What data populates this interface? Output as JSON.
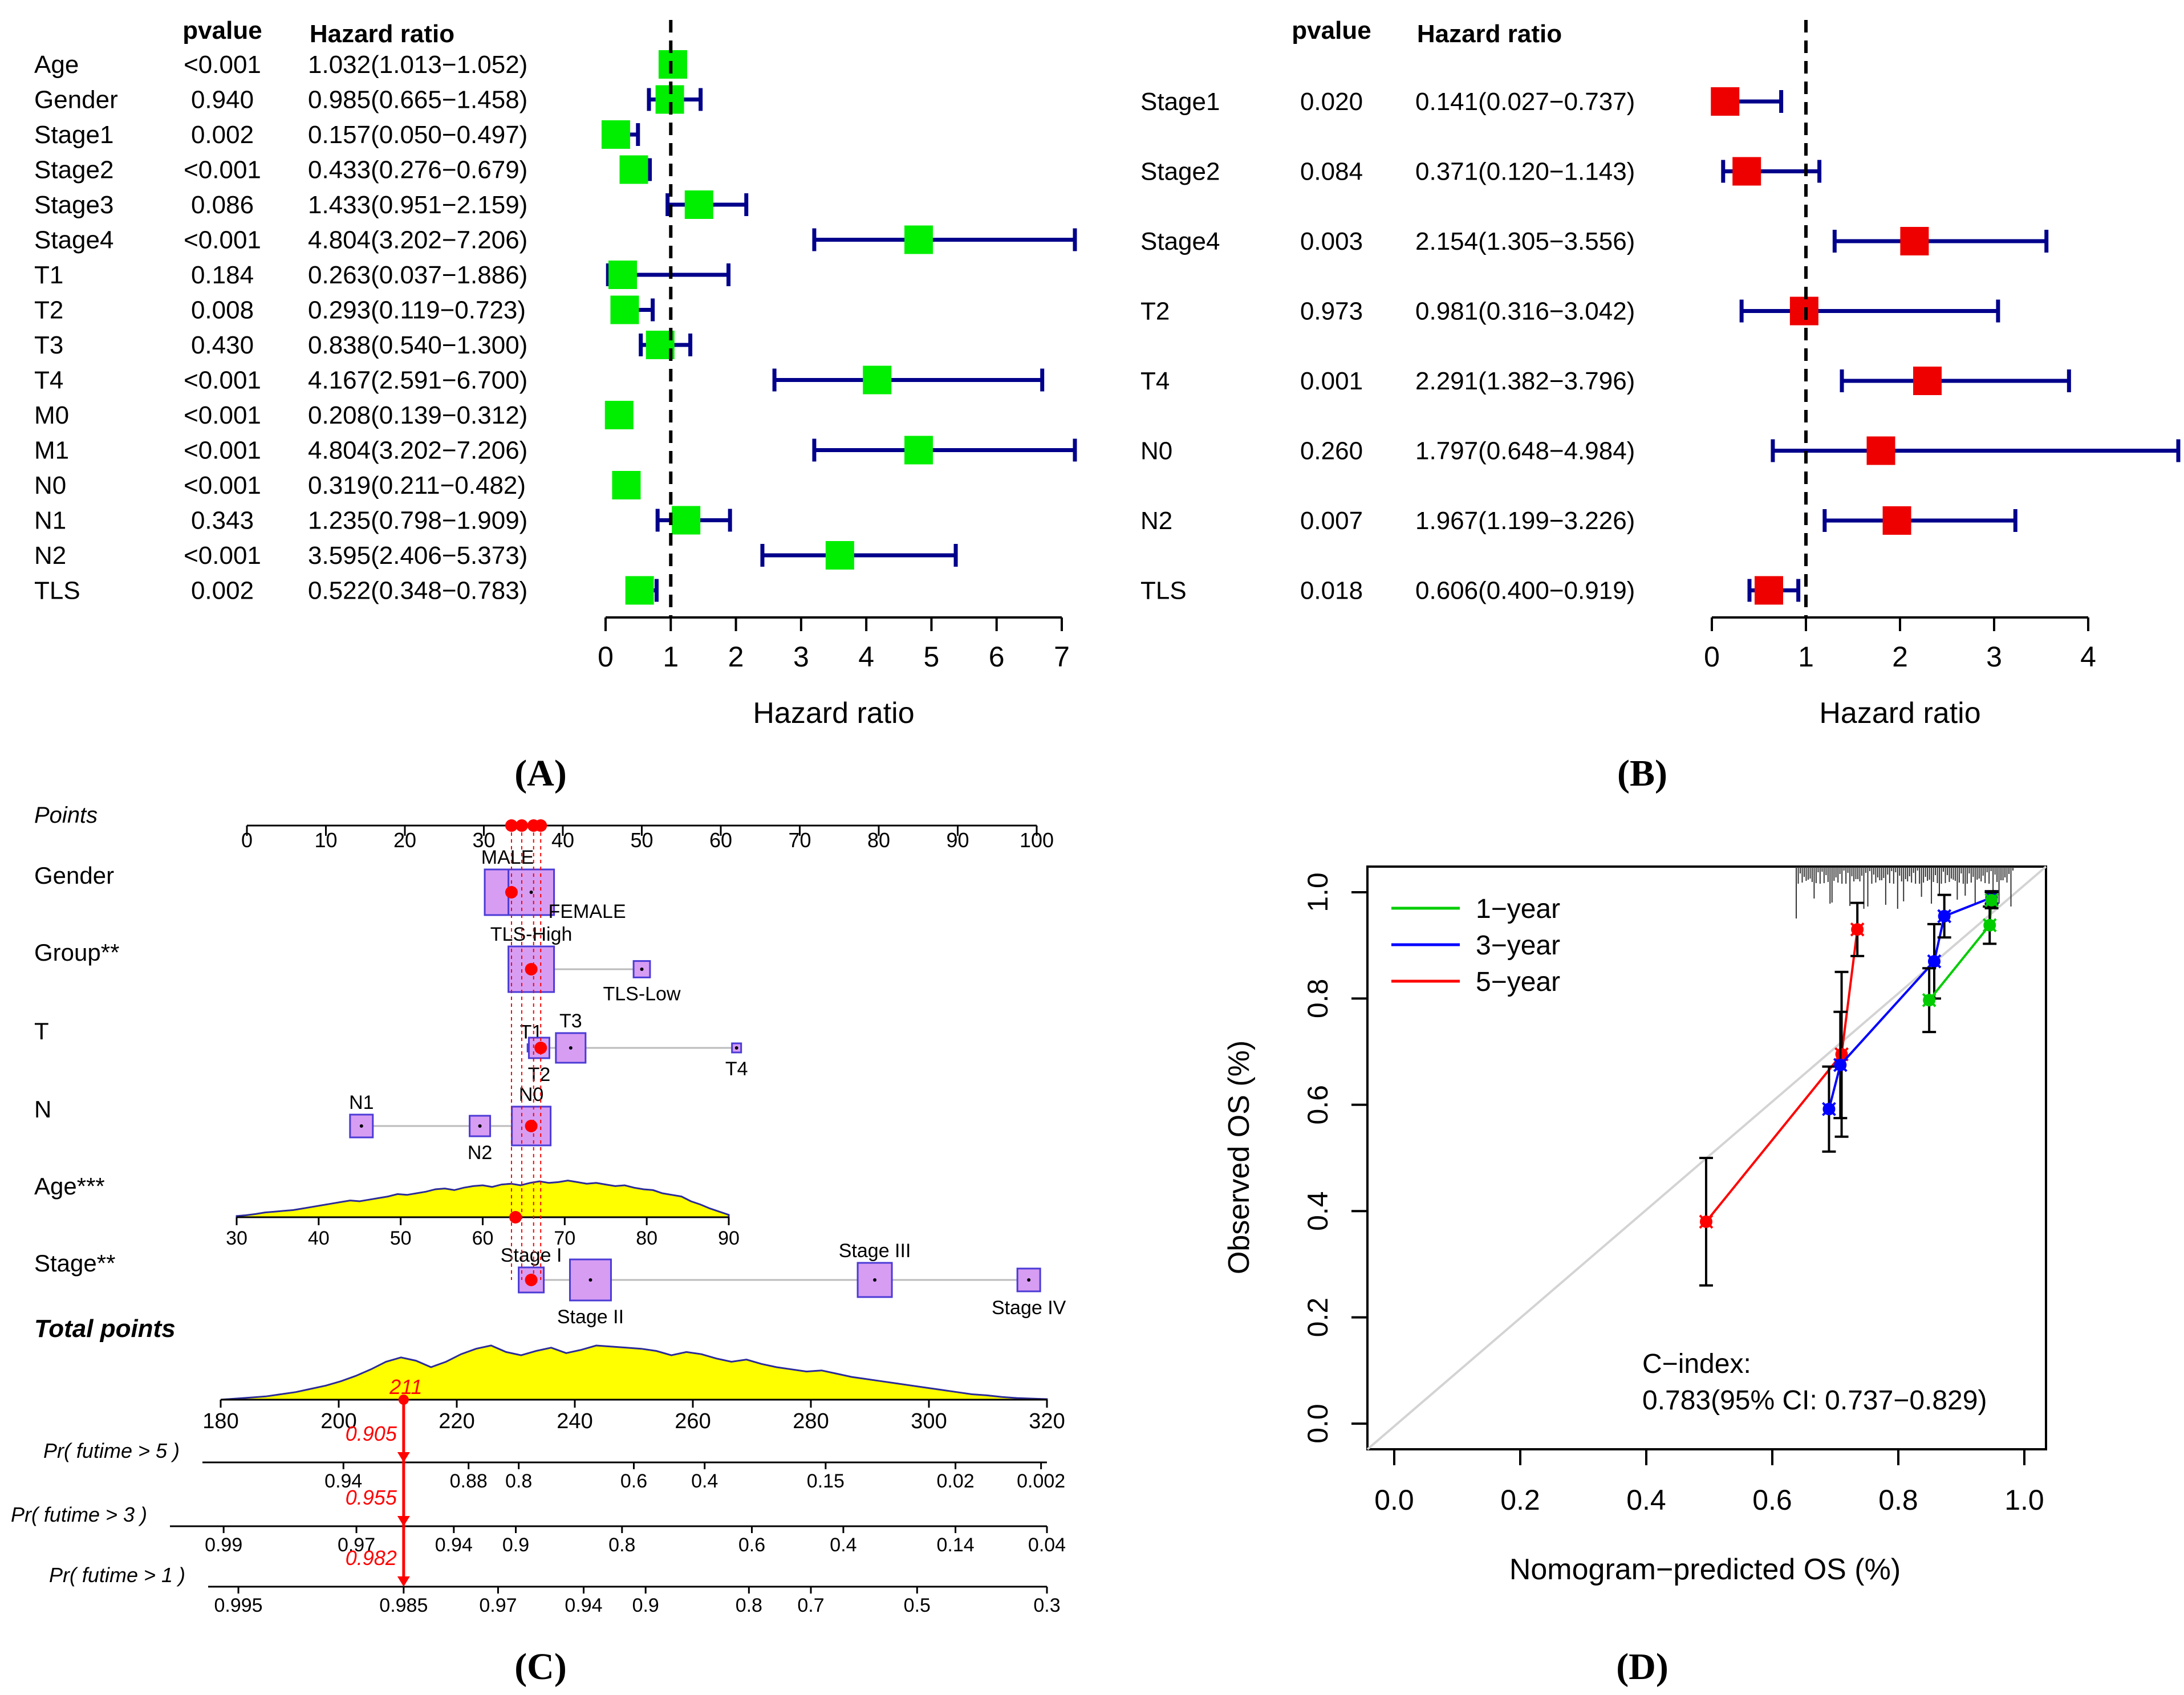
{
  "colors": {
    "forest_a_box": "#00ee00",
    "forest_b_box": "#ee0000",
    "ci_line": "#00008b",
    "nomo_box_fill": "#d79df3",
    "nomo_box_stroke": "#4b3bd6",
    "density_fill": "#ffff00",
    "density_stroke": "#2b2b9a",
    "marker_red": "#ff0000",
    "cal_1yr": "#00cc00",
    "cal_3yr": "#0000ff",
    "cal_5yr": "#ff0000",
    "cal_diag": "#d3d3d3"
  },
  "panel_labels": [
    "(A)",
    "(B)",
    "(C)",
    "(D)"
  ],
  "chart_data": [
    {
      "id": "A",
      "type": "forest",
      "header_pvalue": "pvalue",
      "header_hr": "Hazard ratio",
      "xlabel": "Hazard ratio",
      "xlim": [
        0,
        7
      ],
      "xticks": [
        "0",
        "1",
        "2",
        "3",
        "4",
        "5",
        "6",
        "7"
      ],
      "xtick_values": [
        0,
        1,
        2,
        3,
        4,
        5,
        6,
        7
      ],
      "ref_line": 1,
      "rows": [
        {
          "name": "Age",
          "pvalue": "<0.001",
          "hr_text": "1.032(1.013−1.052)",
          "hr": 1.032,
          "lo": 1.013,
          "hi": 1.052
        },
        {
          "name": "Gender",
          "pvalue": "0.940",
          "hr_text": "0.985(0.665−1.458)",
          "hr": 0.985,
          "lo": 0.665,
          "hi": 1.458
        },
        {
          "name": "Stage1",
          "pvalue": "0.002",
          "hr_text": "0.157(0.050−0.497)",
          "hr": 0.157,
          "lo": 0.05,
          "hi": 0.497
        },
        {
          "name": "Stage2",
          "pvalue": "<0.001",
          "hr_text": "0.433(0.276−0.679)",
          "hr": 0.433,
          "lo": 0.276,
          "hi": 0.679
        },
        {
          "name": "Stage3",
          "pvalue": "0.086",
          "hr_text": "1.433(0.951−2.159)",
          "hr": 1.433,
          "lo": 0.951,
          "hi": 2.159
        },
        {
          "name": "Stage4",
          "pvalue": "<0.001",
          "hr_text": "4.804(3.202−7.206)",
          "hr": 4.804,
          "lo": 3.202,
          "hi": 7.206
        },
        {
          "name": "T1",
          "pvalue": "0.184",
          "hr_text": "0.263(0.037−1.886)",
          "hr": 0.263,
          "lo": 0.037,
          "hi": 1.886
        },
        {
          "name": "T2",
          "pvalue": "0.008",
          "hr_text": "0.293(0.119−0.723)",
          "hr": 0.293,
          "lo": 0.119,
          "hi": 0.723
        },
        {
          "name": "T3",
          "pvalue": "0.430",
          "hr_text": "0.838(0.540−1.300)",
          "hr": 0.838,
          "lo": 0.54,
          "hi": 1.3
        },
        {
          "name": "T4",
          "pvalue": "<0.001",
          "hr_text": "4.167(2.591−6.700)",
          "hr": 4.167,
          "lo": 2.591,
          "hi": 6.7
        },
        {
          "name": "M0",
          "pvalue": "<0.001",
          "hr_text": "0.208(0.139−0.312)",
          "hr": 0.208,
          "lo": 0.139,
          "hi": 0.312
        },
        {
          "name": "M1",
          "pvalue": "<0.001",
          "hr_text": "4.804(3.202−7.206)",
          "hr": 4.804,
          "lo": 3.202,
          "hi": 7.206
        },
        {
          "name": "N0",
          "pvalue": "<0.001",
          "hr_text": "0.319(0.211−0.482)",
          "hr": 0.319,
          "lo": 0.211,
          "hi": 0.482
        },
        {
          "name": "N1",
          "pvalue": "0.343",
          "hr_text": "1.235(0.798−1.909)",
          "hr": 1.235,
          "lo": 0.798,
          "hi": 1.909
        },
        {
          "name": "N2",
          "pvalue": "<0.001",
          "hr_text": "3.595(2.406−5.373)",
          "hr": 3.595,
          "lo": 2.406,
          "hi": 5.373
        },
        {
          "name": "TLS",
          "pvalue": "0.002",
          "hr_text": "0.522(0.348−0.783)",
          "hr": 0.522,
          "lo": 0.348,
          "hi": 0.783
        }
      ]
    },
    {
      "id": "B",
      "type": "forest",
      "header_pvalue": "pvalue",
      "header_hr": "Hazard ratio",
      "xlabel": "Hazard ratio",
      "xlim": [
        0,
        4
      ],
      "xticks": [
        "0",
        "1",
        "2",
        "3",
        "4"
      ],
      "xtick_values": [
        0,
        1,
        2,
        3,
        4
      ],
      "ref_line": 1,
      "rows": [
        {
          "name": "Stage1",
          "pvalue": "0.020",
          "hr_text": "0.141(0.027−0.737)",
          "hr": 0.141,
          "lo": 0.027,
          "hi": 0.737
        },
        {
          "name": "Stage2",
          "pvalue": "0.084",
          "hr_text": "0.371(0.120−1.143)",
          "hr": 0.371,
          "lo": 0.12,
          "hi": 1.143
        },
        {
          "name": "Stage4",
          "pvalue": "0.003",
          "hr_text": "2.154(1.305−3.556)",
          "hr": 2.154,
          "lo": 1.305,
          "hi": 3.556
        },
        {
          "name": "T2",
          "pvalue": "0.973",
          "hr_text": "0.981(0.316−3.042)",
          "hr": 0.981,
          "lo": 0.316,
          "hi": 3.042
        },
        {
          "name": "T4",
          "pvalue": "0.001",
          "hr_text": "2.291(1.382−3.796)",
          "hr": 2.291,
          "lo": 1.382,
          "hi": 3.796
        },
        {
          "name": "N0",
          "pvalue": "0.260",
          "hr_text": "1.797(0.648−4.984)",
          "hr": 1.797,
          "lo": 0.648,
          "hi": 4.984
        },
        {
          "name": "N2",
          "pvalue": "0.007",
          "hr_text": "1.967(1.199−3.226)",
          "hr": 1.967,
          "lo": 1.199,
          "hi": 3.226
        },
        {
          "name": "TLS",
          "pvalue": "0.018",
          "hr_text": "0.606(0.400−0.919)",
          "hr": 0.606,
          "lo": 0.4,
          "hi": 0.919
        }
      ]
    },
    {
      "id": "C",
      "type": "nomogram",
      "points_label": "Points",
      "points_axis": {
        "range": [
          0,
          100
        ],
        "ticks": [
          "0",
          "10",
          "20",
          "30",
          "40",
          "50",
          "60",
          "70",
          "80",
          "90",
          "100"
        ],
        "tick_values": [
          0,
          10,
          20,
          30,
          40,
          50,
          60,
          70,
          80,
          90,
          100
        ]
      },
      "points_markers": [
        33.5,
        34.8,
        36.3,
        37.2
      ],
      "variables": [
        {
          "name": "Gender",
          "levels": [
            {
              "label": "MALE",
              "points": 33,
              "size": 1.0,
              "label_pos": "above"
            },
            {
              "label": "FEMALE",
              "points": 36,
              "size": 1.0,
              "label_pos": "below-right"
            }
          ],
          "selected_points": 33.5
        },
        {
          "name": "Group**",
          "levels": [
            {
              "label": "TLS-High",
              "points": 36,
              "size": 1.0,
              "label_pos": "above"
            },
            {
              "label": "TLS-Low",
              "points": 50,
              "size": 0.36,
              "label_pos": "below"
            }
          ],
          "selected_points": 36
        },
        {
          "name": "T",
          "levels": [
            {
              "label": "T1",
              "points": 36,
              "size": 0.16,
              "label_pos": "above"
            },
            {
              "label": "T2",
              "points": 37,
              "size": 0.45,
              "label_pos": "below"
            },
            {
              "label": "T3",
              "points": 41,
              "size": 0.65,
              "label_pos": "above"
            },
            {
              "label": "T4",
              "points": 62,
              "size": 0.2,
              "label_pos": "below"
            }
          ],
          "selected_points": 37.2
        },
        {
          "name": "N",
          "levels": [
            {
              "label": "N1",
              "points": 14.5,
              "size": 0.5,
              "label_pos": "above"
            },
            {
              "label": "N2",
              "points": 29.5,
              "size": 0.45,
              "label_pos": "below"
            },
            {
              "label": "N0",
              "points": 36,
              "size": 0.85,
              "label_pos": "above"
            }
          ],
          "selected_points": 36
        },
        {
          "name": "Age***",
          "axis_range": [
            30,
            90
          ],
          "axis_ticks": [
            "30",
            "40",
            "50",
            "60",
            "70",
            "80",
            "90"
          ],
          "axis_values": [
            30,
            40,
            50,
            60,
            70,
            80,
            90
          ],
          "selected_value": 64
        },
        {
          "name": "Stage**",
          "levels": [
            {
              "label": "Stage I",
              "points": 36,
              "size": 0.55,
              "label_pos": "above"
            },
            {
              "label": "Stage II",
              "points": 43.5,
              "size": 0.9,
              "label_pos": "below"
            },
            {
              "label": "Stage III",
              "points": 79.5,
              "size": 0.75,
              "label_pos": "above"
            },
            {
              "label": "Stage IV",
              "points": 99,
              "size": 0.5,
              "label_pos": "below"
            }
          ],
          "selected_points": 36
        }
      ],
      "total_points": {
        "label": "Total points",
        "ticks": [
          "180",
          "200",
          "220",
          "240",
          "260",
          "280",
          "300",
          "320"
        ],
        "tick_values": [
          180,
          200,
          220,
          240,
          260,
          280,
          300,
          320
        ],
        "marker_value": 211,
        "marker_label": "211"
      },
      "probability_axes": [
        {
          "label": "Pr( futime > 5 )",
          "ticks": [
            "0.94",
            "0.88",
            "0.8",
            "0.6",
            "0.4",
            "0.15",
            "0.02",
            "0.002"
          ],
          "tick_points": [
            200.8,
            222,
            230.5,
            250,
            262,
            282.5,
            304.5,
            319
          ],
          "marker_text": "0.905"
        },
        {
          "label": "Pr( futime > 3 )",
          "ticks": [
            "0.99",
            "0.97",
            "0.94",
            "0.9",
            "0.8",
            "0.6",
            "0.4",
            "0.14",
            "0.04"
          ],
          "tick_points": [
            180.5,
            203,
            219.5,
            230,
            248,
            270,
            285.5,
            304.5,
            320
          ],
          "marker_text": "0.955"
        },
        {
          "label": "Pr( futime > 1 )",
          "ticks": [
            "0.995",
            "0.985",
            "0.97",
            "0.94",
            "0.9",
            "0.8",
            "0.7",
            "0.5",
            "0.3"
          ],
          "tick_points": [
            183,
            211,
            227,
            241.5,
            252,
            269.5,
            280,
            298,
            320
          ],
          "marker_text": "0.982"
        }
      ]
    },
    {
      "id": "D",
      "type": "line",
      "xlabel": "Nomogram−predicted OS (%)",
      "ylabel": "Observed OS (%)",
      "xlim": [
        0.0,
        1.0
      ],
      "ylim": [
        0.0,
        1.0
      ],
      "xticks": [
        "0.0",
        "0.2",
        "0.4",
        "0.6",
        "0.8",
        "1.0"
      ],
      "yticks": [
        "0.0",
        "0.2",
        "0.4",
        "0.6",
        "0.8",
        "1.0"
      ],
      "tick_values": [
        0.0,
        0.2,
        0.4,
        0.6,
        0.8,
        1.0
      ],
      "legend": [
        "1−year",
        "3−year",
        "5−year"
      ],
      "annotation_title": "C−index:",
      "annotation_value": "0.783(95% CI: 0.737−0.829)",
      "series": [
        {
          "name": "1-year",
          "x": [
            0.849,
            0.945,
            0.948
          ],
          "y": [
            0.797,
            0.938,
            0.985
          ],
          "err": [
            0.06,
            0.035,
            0.015
          ]
        },
        {
          "name": "3-year",
          "x": [
            0.69,
            0.708,
            0.857,
            0.873,
            0.948
          ],
          "y": [
            0.592,
            0.675,
            0.87,
            0.955,
            0.99
          ],
          "err": [
            0.08,
            0.1,
            0.07,
            0.04,
            0.012
          ]
        },
        {
          "name": "5-year",
          "x": [
            0.495,
            0.71,
            0.735
          ],
          "y": [
            0.38,
            0.695,
            0.93
          ],
          "err": [
            0.12,
            0.155,
            0.05
          ]
        }
      ]
    }
  ]
}
